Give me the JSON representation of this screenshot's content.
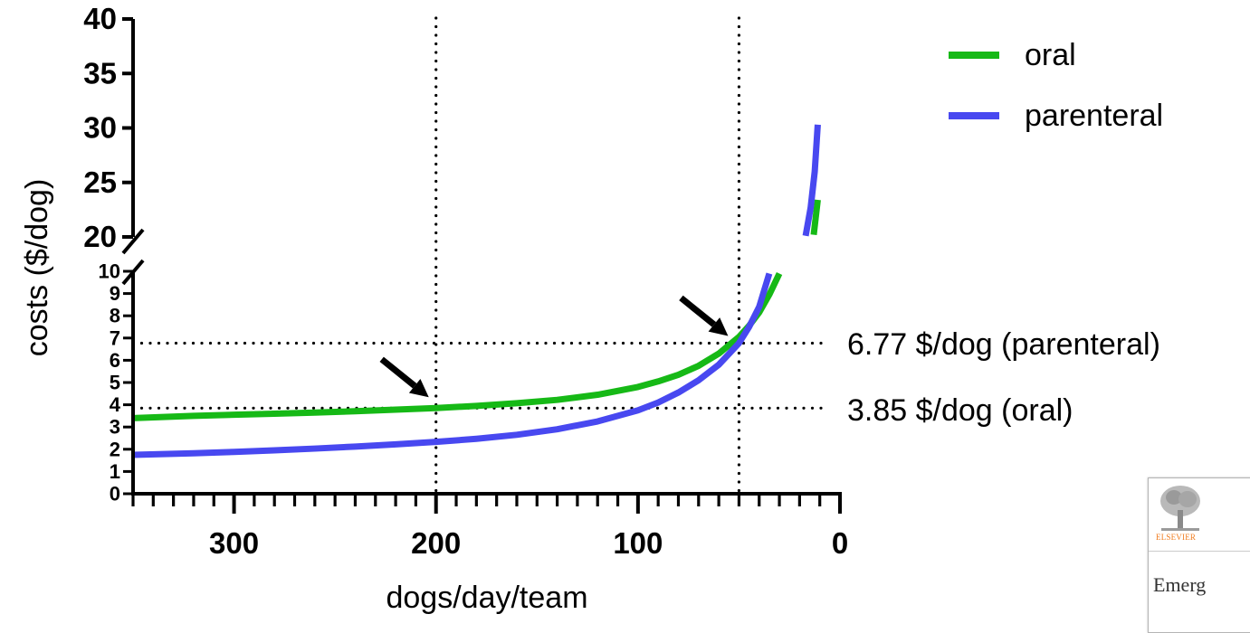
{
  "chart_data": {
    "type": "line",
    "title": "",
    "xlabel": "dogs/day/team",
    "ylabel": "costs ($/dog)",
    "x_reversed": true,
    "xlim": [
      350,
      0
    ],
    "x_ticks": [
      300,
      200,
      100,
      0
    ],
    "x_minor_tick_step": 10,
    "y_broken": true,
    "y_lower_range": [
      0,
      10
    ],
    "y_upper_range": [
      20,
      40
    ],
    "y_ticks_lower": [
      0,
      1,
      2,
      3,
      4,
      5,
      6,
      7,
      8,
      9,
      10
    ],
    "y_ticks_upper": [
      20,
      25,
      30,
      35,
      40
    ],
    "legend_position": "top-right",
    "series": [
      {
        "name": "oral",
        "color": "#16b916",
        "x": [
          350,
          320,
          300,
          280,
          260,
          240,
          220,
          200,
          180,
          160,
          140,
          120,
          100,
          90,
          80,
          70,
          60,
          50,
          45,
          40,
          35,
          30
        ],
        "y": [
          3.4,
          3.5,
          3.55,
          3.6,
          3.65,
          3.71,
          3.78,
          3.85,
          3.95,
          4.07,
          4.22,
          4.45,
          4.8,
          5.05,
          5.35,
          5.75,
          6.3,
          7.05,
          7.55,
          8.15,
          8.95,
          9.9
        ],
        "upper_segment": {
          "x": [
            13,
            11
          ],
          "y": [
            20.2,
            23.4
          ]
        }
      },
      {
        "name": "parenteral",
        "color": "#4848f0",
        "x": [
          350,
          320,
          300,
          280,
          260,
          240,
          220,
          200,
          180,
          160,
          140,
          120,
          100,
          90,
          80,
          70,
          60,
          50,
          45,
          40,
          35
        ],
        "y": [
          1.75,
          1.82,
          1.88,
          1.95,
          2.03,
          2.12,
          2.22,
          2.33,
          2.47,
          2.65,
          2.9,
          3.25,
          3.75,
          4.1,
          4.55,
          5.1,
          5.8,
          6.77,
          7.5,
          8.4,
          9.9
        ],
        "upper_segment": {
          "x": [
            17,
            14.5,
            12.5,
            11
          ],
          "y": [
            20.1,
            22.7,
            26.0,
            30.3
          ]
        }
      }
    ],
    "reference_lines": {
      "vertical_x": [
        200,
        50
      ],
      "horizontal_y": [
        6.77,
        3.85
      ]
    },
    "annotations": [
      {
        "label": "6.77 $/dog (parenteral)",
        "x": 50,
        "y": 6.77
      },
      {
        "label": "3.85 $/dog (oral)",
        "x": 200,
        "y": 3.85
      }
    ]
  },
  "publisher": {
    "name": "ELSEVIER",
    "snippet": "Emerg"
  }
}
